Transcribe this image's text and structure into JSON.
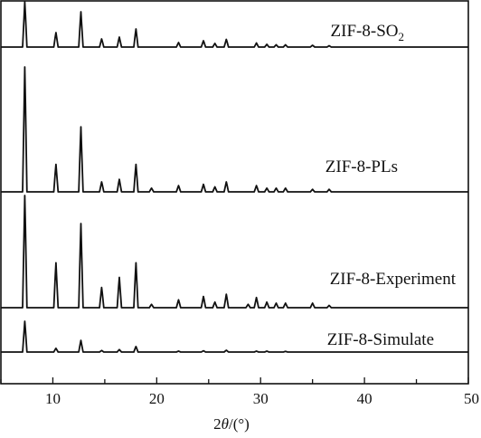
{
  "chart_data": {
    "type": "line",
    "xlabel_parts": {
      "pre": "2",
      "italic": "θ",
      "post": "/(°)"
    },
    "xlim": [
      5,
      50
    ],
    "xticks": [
      10,
      20,
      30,
      40,
      50
    ],
    "ylabel": "",
    "grid": false,
    "series": [
      {
        "name": "ZIF-8-SO",
        "name_sub": "2",
        "peaks": [
          [
            7.3,
            1.0
          ],
          [
            10.3,
            0.32
          ],
          [
            12.7,
            0.78
          ],
          [
            14.7,
            0.18
          ],
          [
            16.4,
            0.22
          ],
          [
            18.0,
            0.4
          ],
          [
            22.1,
            0.1
          ],
          [
            24.5,
            0.14
          ],
          [
            25.6,
            0.08
          ],
          [
            26.7,
            0.17
          ],
          [
            29.6,
            0.09
          ],
          [
            30.6,
            0.06
          ],
          [
            31.5,
            0.05
          ],
          [
            32.4,
            0.05
          ],
          [
            35.0,
            0.04
          ],
          [
            36.6,
            0.03
          ]
        ]
      },
      {
        "name": "ZIF-8-PLs",
        "name_sub": "",
        "peaks": [
          [
            7.3,
            1.0
          ],
          [
            10.3,
            0.22
          ],
          [
            12.7,
            0.52
          ],
          [
            14.7,
            0.08
          ],
          [
            16.4,
            0.1
          ],
          [
            18.0,
            0.22
          ],
          [
            19.5,
            0.03
          ],
          [
            22.1,
            0.05
          ],
          [
            24.5,
            0.06
          ],
          [
            25.6,
            0.04
          ],
          [
            26.7,
            0.08
          ],
          [
            29.6,
            0.05
          ],
          [
            30.6,
            0.03
          ],
          [
            31.5,
            0.03
          ],
          [
            32.4,
            0.03
          ],
          [
            35.0,
            0.02
          ],
          [
            36.6,
            0.02
          ]
        ]
      },
      {
        "name": "ZIF-8-Experiment",
        "name_sub": "",
        "peaks": [
          [
            7.3,
            1.0
          ],
          [
            10.3,
            0.4
          ],
          [
            12.7,
            0.75
          ],
          [
            14.7,
            0.18
          ],
          [
            16.4,
            0.27
          ],
          [
            18.0,
            0.4
          ],
          [
            19.5,
            0.03
          ],
          [
            22.1,
            0.07
          ],
          [
            24.5,
            0.1
          ],
          [
            25.6,
            0.05
          ],
          [
            26.7,
            0.12
          ],
          [
            28.8,
            0.03
          ],
          [
            29.6,
            0.09
          ],
          [
            30.6,
            0.05
          ],
          [
            31.5,
            0.04
          ],
          [
            32.4,
            0.04
          ],
          [
            35.0,
            0.04
          ],
          [
            36.6,
            0.02
          ]
        ]
      },
      {
        "name": "ZIF-8-Simulate",
        "name_sub": "",
        "peaks": [
          [
            7.3,
            1.0
          ],
          [
            10.3,
            0.12
          ],
          [
            12.7,
            0.38
          ],
          [
            14.7,
            0.05
          ],
          [
            16.4,
            0.08
          ],
          [
            18.0,
            0.18
          ],
          [
            22.1,
            0.03
          ],
          [
            24.5,
            0.04
          ],
          [
            26.7,
            0.06
          ],
          [
            29.6,
            0.03
          ],
          [
            30.6,
            0.03
          ],
          [
            32.4,
            0.02
          ]
        ]
      }
    ]
  }
}
